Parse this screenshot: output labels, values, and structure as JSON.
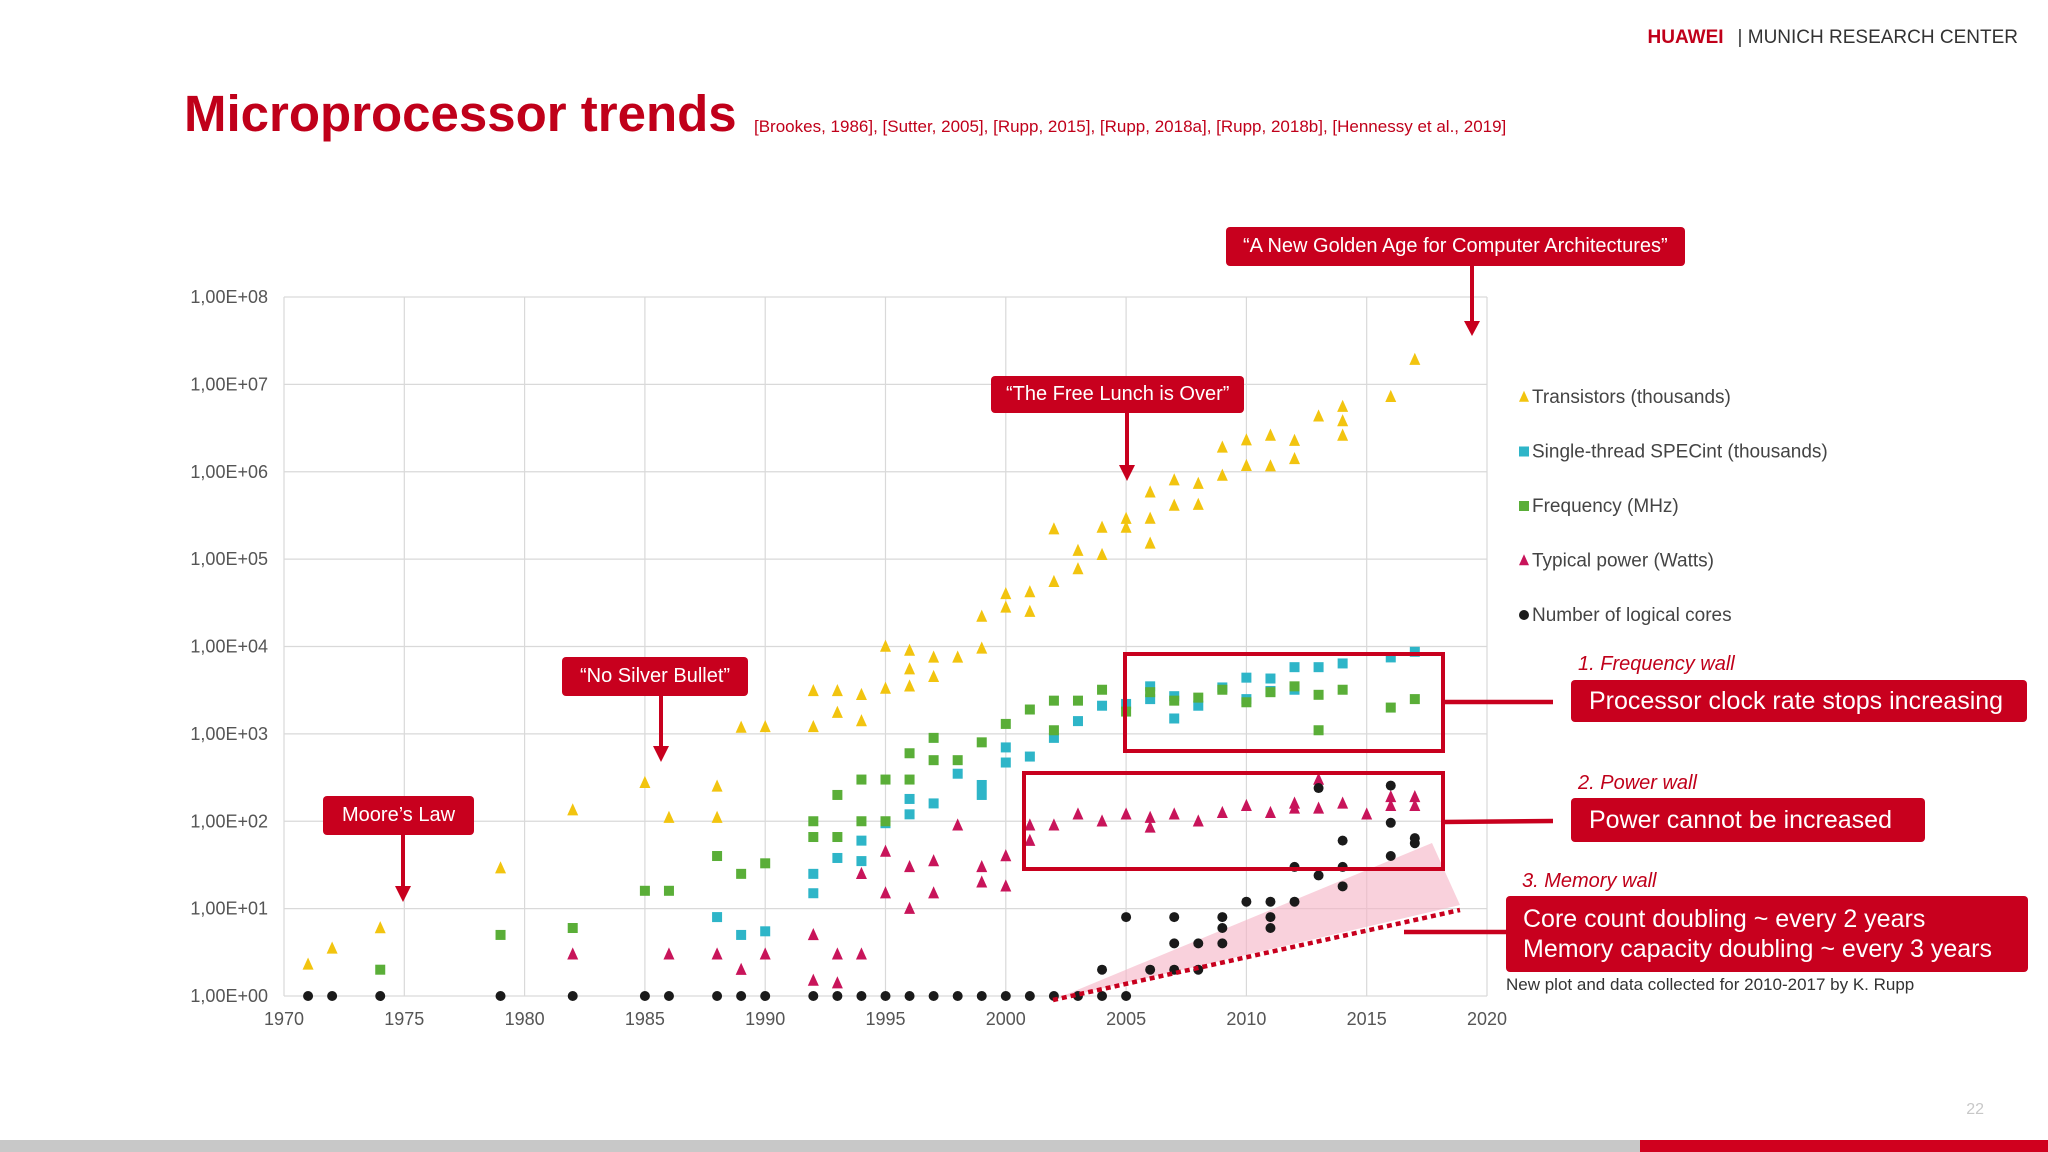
{
  "header": {
    "brand": "HUAWEI",
    "center": "| MUNICH RESEARCH CENTER"
  },
  "title": "Microprocessor trends",
  "references": "[Brookes, 1986], [Sutter, 2005], [Rupp, 2015], [Rupp, 2018a], [Rupp, 2018b], [Hennessy et al., 2019]",
  "callouts": {
    "golden_age": "“A New Golden Age for Computer Architectures”",
    "free_lunch": "“The Free Lunch is Over”",
    "silver_bullet": "“No Silver Bullet”",
    "moores_law": "Moore’s Law"
  },
  "walls": {
    "frequency_label": "1. Frequency wall",
    "frequency_text": "Processor clock rate stops increasing",
    "power_label": "2. Power wall",
    "power_text": "Power cannot be increased",
    "memory_label": "3. Memory wall",
    "memory_line1": "Core count doubling ~ every 2 years",
    "memory_line2": "Memory capacity doubling ~ every 3 years"
  },
  "note": "New plot and data collected for 2010-2017 by K. Rupp",
  "page_number": "22",
  "colors": {
    "accent": "#c8001e",
    "transistors": "#f2c40f",
    "specint": "#2eb5c8",
    "frequency": "#5aae38",
    "power": "#c8145a",
    "cores": "#1a1a1a"
  },
  "chart_data": {
    "type": "scatter",
    "xlim": [
      1970,
      2020
    ],
    "ylim": [
      1,
      100000000
    ],
    "y_scale": "log",
    "grid": true,
    "legend_position": "right",
    "x_ticks": [
      "1970",
      "1975",
      "1980",
      "1985",
      "1990",
      "1995",
      "2000",
      "2005",
      "2010",
      "2015",
      "2020"
    ],
    "y_ticks": [
      "1,00E+00",
      "1,00E+01",
      "1,00E+02",
      "1,00E+03",
      "1,00E+04",
      "1,00E+05",
      "1,00E+06",
      "1,00E+07",
      "1,00E+08"
    ],
    "series": [
      {
        "name": "Transistors (thousands)",
        "marker": "triangle",
        "color": "#f2c40f",
        "points": [
          [
            1971,
            2.3
          ],
          [
            1972,
            3.5
          ],
          [
            1974,
            6
          ],
          [
            1979,
            29
          ],
          [
            1982,
            134
          ],
          [
            1985,
            275
          ],
          [
            1986,
            110
          ],
          [
            1988,
            110
          ],
          [
            1988,
            250
          ],
          [
            1989,
            1180
          ],
          [
            1990,
            1200
          ],
          [
            1992,
            1200
          ],
          [
            1992,
            3100
          ],
          [
            1993,
            1750
          ],
          [
            1993,
            3100
          ],
          [
            1994,
            2800
          ],
          [
            1994,
            1400
          ],
          [
            1995,
            3300
          ],
          [
            1995,
            10000
          ],
          [
            1996,
            3500
          ],
          [
            1996,
            9000
          ],
          [
            1996,
            5500
          ],
          [
            1997,
            7500
          ],
          [
            1997,
            4500
          ],
          [
            1998,
            7500
          ],
          [
            1999,
            9500
          ],
          [
            1999,
            22000
          ],
          [
            2000,
            28000
          ],
          [
            2000,
            40000
          ],
          [
            2001,
            42000
          ],
          [
            2001,
            25000
          ],
          [
            2002,
            55000
          ],
          [
            2002,
            220000
          ],
          [
            2003,
            77000
          ],
          [
            2003,
            125000
          ],
          [
            2004,
            112000
          ],
          [
            2004,
            230000
          ],
          [
            2005,
            290000
          ],
          [
            2005,
            230000
          ],
          [
            2006,
            291000
          ],
          [
            2006,
            582000
          ],
          [
            2006,
            151000
          ],
          [
            2007,
            800000
          ],
          [
            2007,
            410000
          ],
          [
            2008,
            420000
          ],
          [
            2008,
            731000
          ],
          [
            2009,
            1900000
          ],
          [
            2009,
            904000
          ],
          [
            2010,
            1170000
          ],
          [
            2010,
            2300000
          ],
          [
            2011,
            1160000
          ],
          [
            2011,
            2600000
          ],
          [
            2012,
            1400000
          ],
          [
            2012,
            2270000
          ],
          [
            2013,
            4310000
          ],
          [
            2014,
            5560000
          ],
          [
            2014,
            2600000
          ],
          [
            2014,
            3800000
          ],
          [
            2016,
            7200000
          ],
          [
            2017,
            19200000
          ]
        ]
      },
      {
        "name": "Single-thread SPECint (thousands)",
        "marker": "square",
        "color": "#2eb5c8",
        "points": [
          [
            1988,
            8
          ],
          [
            1989,
            5
          ],
          [
            1990,
            5.5
          ],
          [
            1992,
            25
          ],
          [
            1992,
            15
          ],
          [
            1993,
            38
          ],
          [
            1994,
            60
          ],
          [
            1994,
            35
          ],
          [
            1995,
            95
          ],
          [
            1996,
            180
          ],
          [
            1996,
            120
          ],
          [
            1997,
            160
          ],
          [
            1998,
            350
          ],
          [
            1999,
            200
          ],
          [
            1999,
            260
          ],
          [
            2000,
            470
          ],
          [
            2000,
            700
          ],
          [
            2001,
            550
          ],
          [
            2002,
            900
          ],
          [
            2003,
            1400
          ],
          [
            2004,
            2100
          ],
          [
            2005,
            2200
          ],
          [
            2006,
            2500
          ],
          [
            2006,
            3500
          ],
          [
            2007,
            2700
          ],
          [
            2007,
            1500
          ],
          [
            2008,
            2100
          ],
          [
            2009,
            3400
          ],
          [
            2010,
            4400
          ],
          [
            2010,
            2500
          ],
          [
            2011,
            4300
          ],
          [
            2011,
            3100
          ],
          [
            2012,
            5800
          ],
          [
            2012,
            3200
          ],
          [
            2013,
            5800
          ],
          [
            2014,
            6400
          ],
          [
            2016,
            7500
          ],
          [
            2017,
            8700
          ]
        ]
      },
      {
        "name": "Frequency (MHz)",
        "marker": "square",
        "color": "#5aae38",
        "points": [
          [
            1974,
            2
          ],
          [
            1979,
            5
          ],
          [
            1982,
            6
          ],
          [
            1985,
            16
          ],
          [
            1986,
            16
          ],
          [
            1988,
            40
          ],
          [
            1989,
            25
          ],
          [
            1990,
            33
          ],
          [
            1992,
            66
          ],
          [
            1992,
            100
          ],
          [
            1993,
            66
          ],
          [
            1993,
            200
          ],
          [
            1994,
            100
          ],
          [
            1994,
            300
          ],
          [
            1995,
            300
          ],
          [
            1995,
            100
          ],
          [
            1996,
            300
          ],
          [
            1996,
            600
          ],
          [
            1997,
            500
          ],
          [
            1997,
            900
          ],
          [
            1998,
            500
          ],
          [
            1999,
            800
          ],
          [
            2000,
            1300
          ],
          [
            2001,
            1900
          ],
          [
            2002,
            2400
          ],
          [
            2002,
            1100
          ],
          [
            2003,
            2400
          ],
          [
            2004,
            3200
          ],
          [
            2005,
            1800
          ],
          [
            2006,
            3000
          ],
          [
            2007,
            2400
          ],
          [
            2008,
            2600
          ],
          [
            2009,
            3200
          ],
          [
            2010,
            2300
          ],
          [
            2011,
            3000
          ],
          [
            2012,
            3500
          ],
          [
            2013,
            1100
          ],
          [
            2013,
            2800
          ],
          [
            2014,
            3200
          ],
          [
            2016,
            2000
          ],
          [
            2017,
            2500
          ]
        ]
      },
      {
        "name": "Typical power (Watts)",
        "marker": "triangle",
        "color": "#c8145a",
        "points": [
          [
            1982,
            3
          ],
          [
            1986,
            3
          ],
          [
            1988,
            3
          ],
          [
            1989,
            2
          ],
          [
            1990,
            3
          ],
          [
            1992,
            5
          ],
          [
            1992,
            1.5
          ],
          [
            1993,
            3
          ],
          [
            1993,
            1.4
          ],
          [
            1994,
            3
          ],
          [
            1994,
            25
          ],
          [
            1995,
            15
          ],
          [
            1995,
            45
          ],
          [
            1996,
            30
          ],
          [
            1996,
            10
          ],
          [
            1997,
            35
          ],
          [
            1997,
            15
          ],
          [
            1998,
            90
          ],
          [
            1999,
            20
          ],
          [
            1999,
            30
          ],
          [
            2000,
            40
          ],
          [
            2000,
            18
          ],
          [
            2001,
            60
          ],
          [
            2001,
            90
          ],
          [
            2002,
            90
          ],
          [
            2003,
            120
          ],
          [
            2004,
            100
          ],
          [
            2005,
            120
          ],
          [
            2006,
            85
          ],
          [
            2006,
            110
          ],
          [
            2007,
            120
          ],
          [
            2008,
            100
          ],
          [
            2009,
            125
          ],
          [
            2010,
            150
          ],
          [
            2011,
            125
          ],
          [
            2012,
            160
          ],
          [
            2012,
            140
          ],
          [
            2013,
            300
          ],
          [
            2013,
            140
          ],
          [
            2014,
            160
          ],
          [
            2015,
            120
          ],
          [
            2016,
            150
          ],
          [
            2016,
            190
          ],
          [
            2017,
            190
          ],
          [
            2017,
            150
          ]
        ]
      },
      {
        "name": "Number of logical cores",
        "marker": "circle",
        "color": "#1a1a1a",
        "points": [
          [
            1971,
            1
          ],
          [
            1972,
            1
          ],
          [
            1974,
            1
          ],
          [
            1979,
            1
          ],
          [
            1982,
            1
          ],
          [
            1985,
            1
          ],
          [
            1986,
            1
          ],
          [
            1988,
            1
          ],
          [
            1989,
            1
          ],
          [
            1990,
            1
          ],
          [
            1992,
            1
          ],
          [
            1993,
            1
          ],
          [
            1994,
            1
          ],
          [
            1995,
            1
          ],
          [
            1996,
            1
          ],
          [
            1997,
            1
          ],
          [
            1998,
            1
          ],
          [
            1999,
            1
          ],
          [
            2000,
            1
          ],
          [
            2001,
            1
          ],
          [
            2002,
            1
          ],
          [
            2003,
            1
          ],
          [
            2004,
            1
          ],
          [
            2004,
            2
          ],
          [
            2005,
            1
          ],
          [
            2005,
            8
          ],
          [
            2006,
            2
          ],
          [
            2007,
            8
          ],
          [
            2007,
            4
          ],
          [
            2007,
            2
          ],
          [
            2008,
            2
          ],
          [
            2008,
            4
          ],
          [
            2009,
            8
          ],
          [
            2009,
            4
          ],
          [
            2009,
            6
          ],
          [
            2010,
            12
          ],
          [
            2011,
            12
          ],
          [
            2011,
            6
          ],
          [
            2011,
            8
          ],
          [
            2012,
            12
          ],
          [
            2012,
            30
          ],
          [
            2013,
            24
          ],
          [
            2013,
            240
          ],
          [
            2014,
            60
          ],
          [
            2014,
            30
          ],
          [
            2014,
            18
          ],
          [
            2016,
            256
          ],
          [
            2016,
            96
          ],
          [
            2016,
            40
          ],
          [
            2017,
            64
          ],
          [
            2017,
            56
          ]
        ]
      }
    ]
  }
}
